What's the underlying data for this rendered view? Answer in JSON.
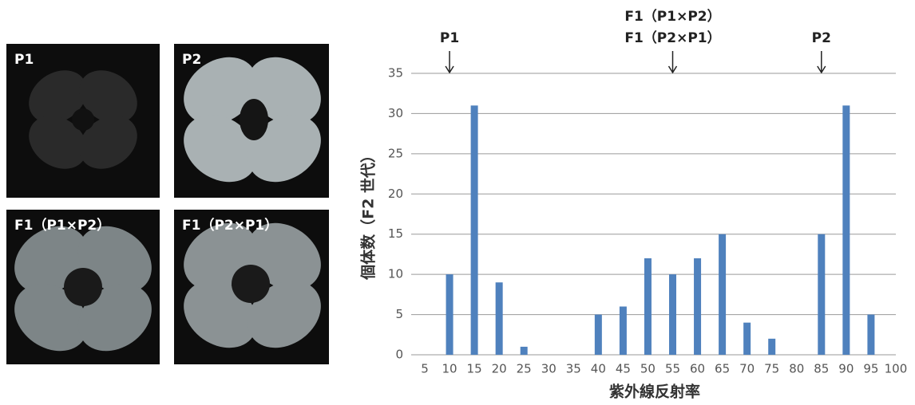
{
  "photos": [
    "P1",
    "P2",
    "F1（P1×P2）",
    "F1（P2×P1）"
  ],
  "chart_data": {
    "type": "bar",
    "xlabel": "紫外線反射率",
    "ylabel": "個体数（F2 世代）",
    "categories": [
      "5",
      "10",
      "15",
      "20",
      "25",
      "30",
      "35",
      "40",
      "45",
      "50",
      "55",
      "60",
      "65",
      "70",
      "75",
      "80",
      "85",
      "90",
      "95",
      "100"
    ],
    "values": [
      0,
      10,
      31,
      9,
      1,
      0,
      0,
      5,
      6,
      12,
      10,
      12,
      15,
      4,
      2,
      0,
      15,
      31,
      5,
      0
    ],
    "color": "#4f81bd",
    "ylim": [
      0,
      35
    ],
    "yticks": [
      0,
      5,
      10,
      15,
      20,
      25,
      30,
      35
    ],
    "grid": true,
    "annotations": [
      {
        "lines": [
          "P1"
        ],
        "category": 1
      },
      {
        "lines": [
          "F1（P1×P2）",
          "F1（P2×P1）"
        ],
        "category": 10
      },
      {
        "lines": [
          "P2"
        ],
        "category": 16
      }
    ]
  }
}
